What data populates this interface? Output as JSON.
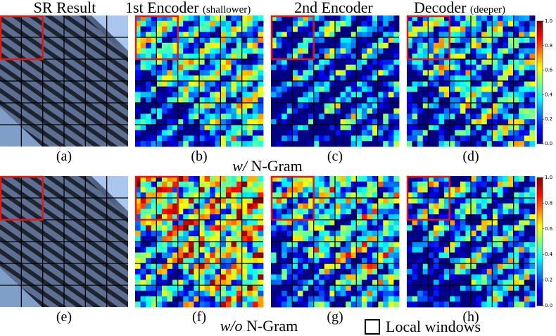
{
  "header": {
    "columns": [
      {
        "title": "SR Result"
      },
      {
        "title": "1st Encoder",
        "note": "(shallower)"
      },
      {
        "title": "2nd Encoder"
      },
      {
        "title": "Decoder",
        "note": "(deeper)"
      }
    ]
  },
  "rows": [
    {
      "label_italic": "w/",
      "label": "N-Gram",
      "captions": [
        "(a)",
        "(b)",
        "(c)",
        "(d)"
      ]
    },
    {
      "label_italic": "w/o",
      "label": "N-Gram",
      "captions": [
        "(e)",
        "(f)",
        "(g)",
        "(h)"
      ]
    }
  ],
  "colorbar": {
    "ticks": [
      {
        "value": 0,
        "label": "0.0"
      },
      {
        "value": 0.2,
        "label": "0.2"
      },
      {
        "value": 0.4,
        "label": "0.4"
      },
      {
        "value": 0.6,
        "label": "0.6"
      },
      {
        "value": 0.8,
        "label": "0.8"
      },
      {
        "value": 1,
        "label": "1.0"
      }
    ]
  },
  "legend": {
    "label": "Local windows"
  }
}
